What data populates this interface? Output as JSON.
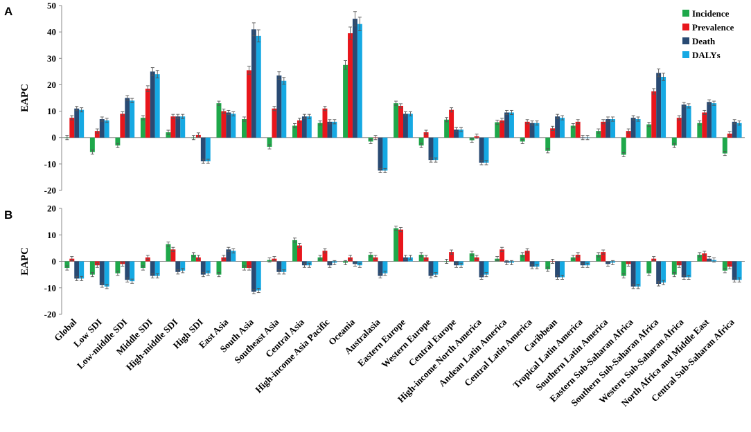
{
  "colors": {
    "Incidence": "#1ea84a",
    "Prevalence": "#e8161c",
    "Death": "#294a73",
    "DALYs": "#16a9e3"
  },
  "chart_data": [
    {
      "type": "bar",
      "panel_label": "A",
      "ylabel": "EAPC",
      "ylim": [
        -20,
        50
      ],
      "yticks": [
        -20,
        -10,
        0,
        10,
        20,
        30,
        40,
        50
      ],
      "legend": [
        "Incidence",
        "Prevalence",
        "Death",
        "DALYs"
      ],
      "legend_position": "top-right",
      "categories": [
        "Global",
        "Low SDI",
        "Low-middle SDI",
        "Middle SDI",
        "High-middle SDI",
        "High SDI",
        "East Asia",
        "South Asia",
        "Southeast Asia",
        "Central Asia",
        "High-income Asia Pacific",
        "Oceania",
        "Australasia",
        "Eastern Europe",
        "Western Europe",
        "Central Europe",
        "High-income North America",
        "Andean Latin America",
        "Central Latin America",
        "Caribbean",
        "Tropical Latin America",
        "Southern Latin America",
        "Eastern Sub-Saharan Africa",
        "Southern Sub-Saharan Africa",
        "Western Sub-Saharan Africa",
        "North Africa and  Middle East",
        "Central Sub-Saharan Africa"
      ],
      "series": [
        {
          "name": "Incidence",
          "values": [
            0,
            -5.5,
            -3,
            7.5,
            2,
            0,
            13,
            7,
            -3.5,
            4.5,
            5.5,
            27.5,
            -1.5,
            13,
            -3,
            6.8,
            -1,
            5.8,
            -1.5,
            -5,
            4.5,
            2.5,
            -6.5,
            5,
            -3,
            5.5,
            -6
          ]
        },
        {
          "name": "Prevalence",
          "values": [
            7.5,
            2.5,
            9,
            18.5,
            8,
            1,
            10,
            25.5,
            11,
            6.5,
            11,
            39.5,
            0,
            12,
            2,
            10.5,
            0.5,
            6.5,
            6,
            3.5,
            6,
            6,
            2.5,
            17.5,
            7.5,
            9.5,
            1.5
          ]
        },
        {
          "name": "Death",
          "values": [
            11,
            7,
            15,
            25,
            8,
            -9,
            9.5,
            41,
            23.5,
            8,
            6,
            45,
            -12.5,
            9,
            -8.5,
            3,
            -9.5,
            9.5,
            5.5,
            8,
            0,
            7,
            7.5,
            24.5,
            12.5,
            13.5,
            6
          ]
        },
        {
          "name": "DALYs",
          "values": [
            10.5,
            6.5,
            14,
            24,
            8,
            -9,
            9,
            38.5,
            21.5,
            8,
            6,
            43,
            -12.5,
            9,
            -8.5,
            3,
            -9.5,
            9.5,
            5.5,
            7.5,
            0,
            7,
            7,
            23,
            12,
            13,
            5.5
          ]
        }
      ]
    },
    {
      "type": "bar",
      "panel_label": "B",
      "ylabel": "EAPC",
      "ylim": [
        -20,
        20
      ],
      "yticks": [
        -20,
        -10,
        0,
        10,
        20
      ],
      "legend": [
        "Incidence",
        "Prevalence",
        "Death",
        "DALYs"
      ],
      "categories": [
        "Global",
        "Low SDI",
        "Low-middle SDI",
        "Middle SDI",
        "High-middle SDI",
        "High SDI",
        "East Asia",
        "South Asia",
        "Southeast Asia",
        "Central Asia",
        "High-income Asia Pacific",
        "Oceania",
        "Australasia",
        "Eastern Europe",
        "Western Europe",
        "Central Europe",
        "High-income North America",
        "Andean Latin America",
        "Central Latin America",
        "Caribbean",
        "Tropical Latin America",
        "Southern Latin America",
        "Eastern Sub-Saharan Africa",
        "Southern Sub-Saharan Africa",
        "Western Sub-Saharan Africa",
        "North Africa and  Middle East",
        "Central Sub-Saharan Africa"
      ],
      "series": [
        {
          "name": "Incidence",
          "values": [
            -2.5,
            -5,
            -4.5,
            -2.5,
            6.5,
            2.5,
            -5,
            -2.5,
            0.5,
            8,
            1.5,
            -0.5,
            2.5,
            12.5,
            2.5,
            0,
            3,
            1,
            2.5,
            -3,
            1.5,
            2.5,
            -5.5,
            -4.5,
            -5,
            2.5,
            -3.5
          ]
        },
        {
          "name": "Prevalence",
          "values": [
            1,
            -1.5,
            -1,
            1.5,
            4.5,
            1.5,
            1.5,
            -2.5,
            1,
            6,
            4,
            1.5,
            1.5,
            12,
            1.5,
            3.5,
            1.5,
            4.5,
            4,
            0,
            2.5,
            3.5,
            -1,
            1,
            -1.5,
            3,
            -2
          ]
        },
        {
          "name": "Death",
          "values": [
            -6.5,
            -9,
            -7,
            -5.5,
            -4,
            -5,
            4.5,
            -11.5,
            -4,
            -1.5,
            -1.5,
            -1,
            -5.5,
            1.5,
            -5.5,
            -1.5,
            -6,
            -0.5,
            -2,
            -6,
            -1.5,
            -1,
            -9.5,
            -8.5,
            -6,
            1,
            -7
          ]
        },
        {
          "name": "DALYs",
          "values": [
            -6.5,
            -9.5,
            -7.5,
            -5.5,
            -3.5,
            -4.5,
            4,
            -11,
            -4,
            -1.5,
            -0.5,
            -1.5,
            -4.5,
            1.5,
            -5,
            -1.5,
            -5,
            -0.5,
            -2,
            -6,
            -1.5,
            -0.5,
            -9.5,
            -8,
            -6,
            0.5,
            -7
          ]
        }
      ]
    }
  ]
}
